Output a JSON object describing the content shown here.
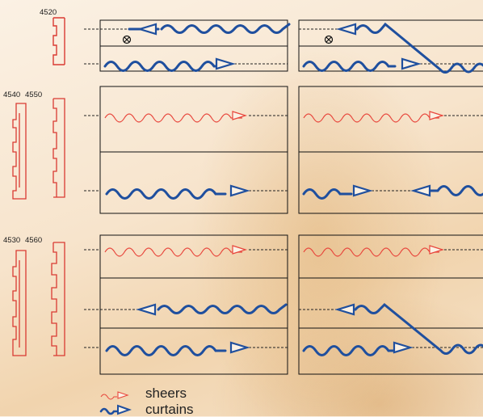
{
  "profiles": {
    "p4520": "4520",
    "p4540": "4540",
    "p4550": "4550",
    "p4530": "4530",
    "p4560": "4560"
  },
  "legend": {
    "sheers": "sheers",
    "curtains": "curtains"
  },
  "colors": {
    "sheer": "#e8463c",
    "curtain": "#1f4f9e",
    "track": "#d93a32",
    "box": "#111111"
  }
}
